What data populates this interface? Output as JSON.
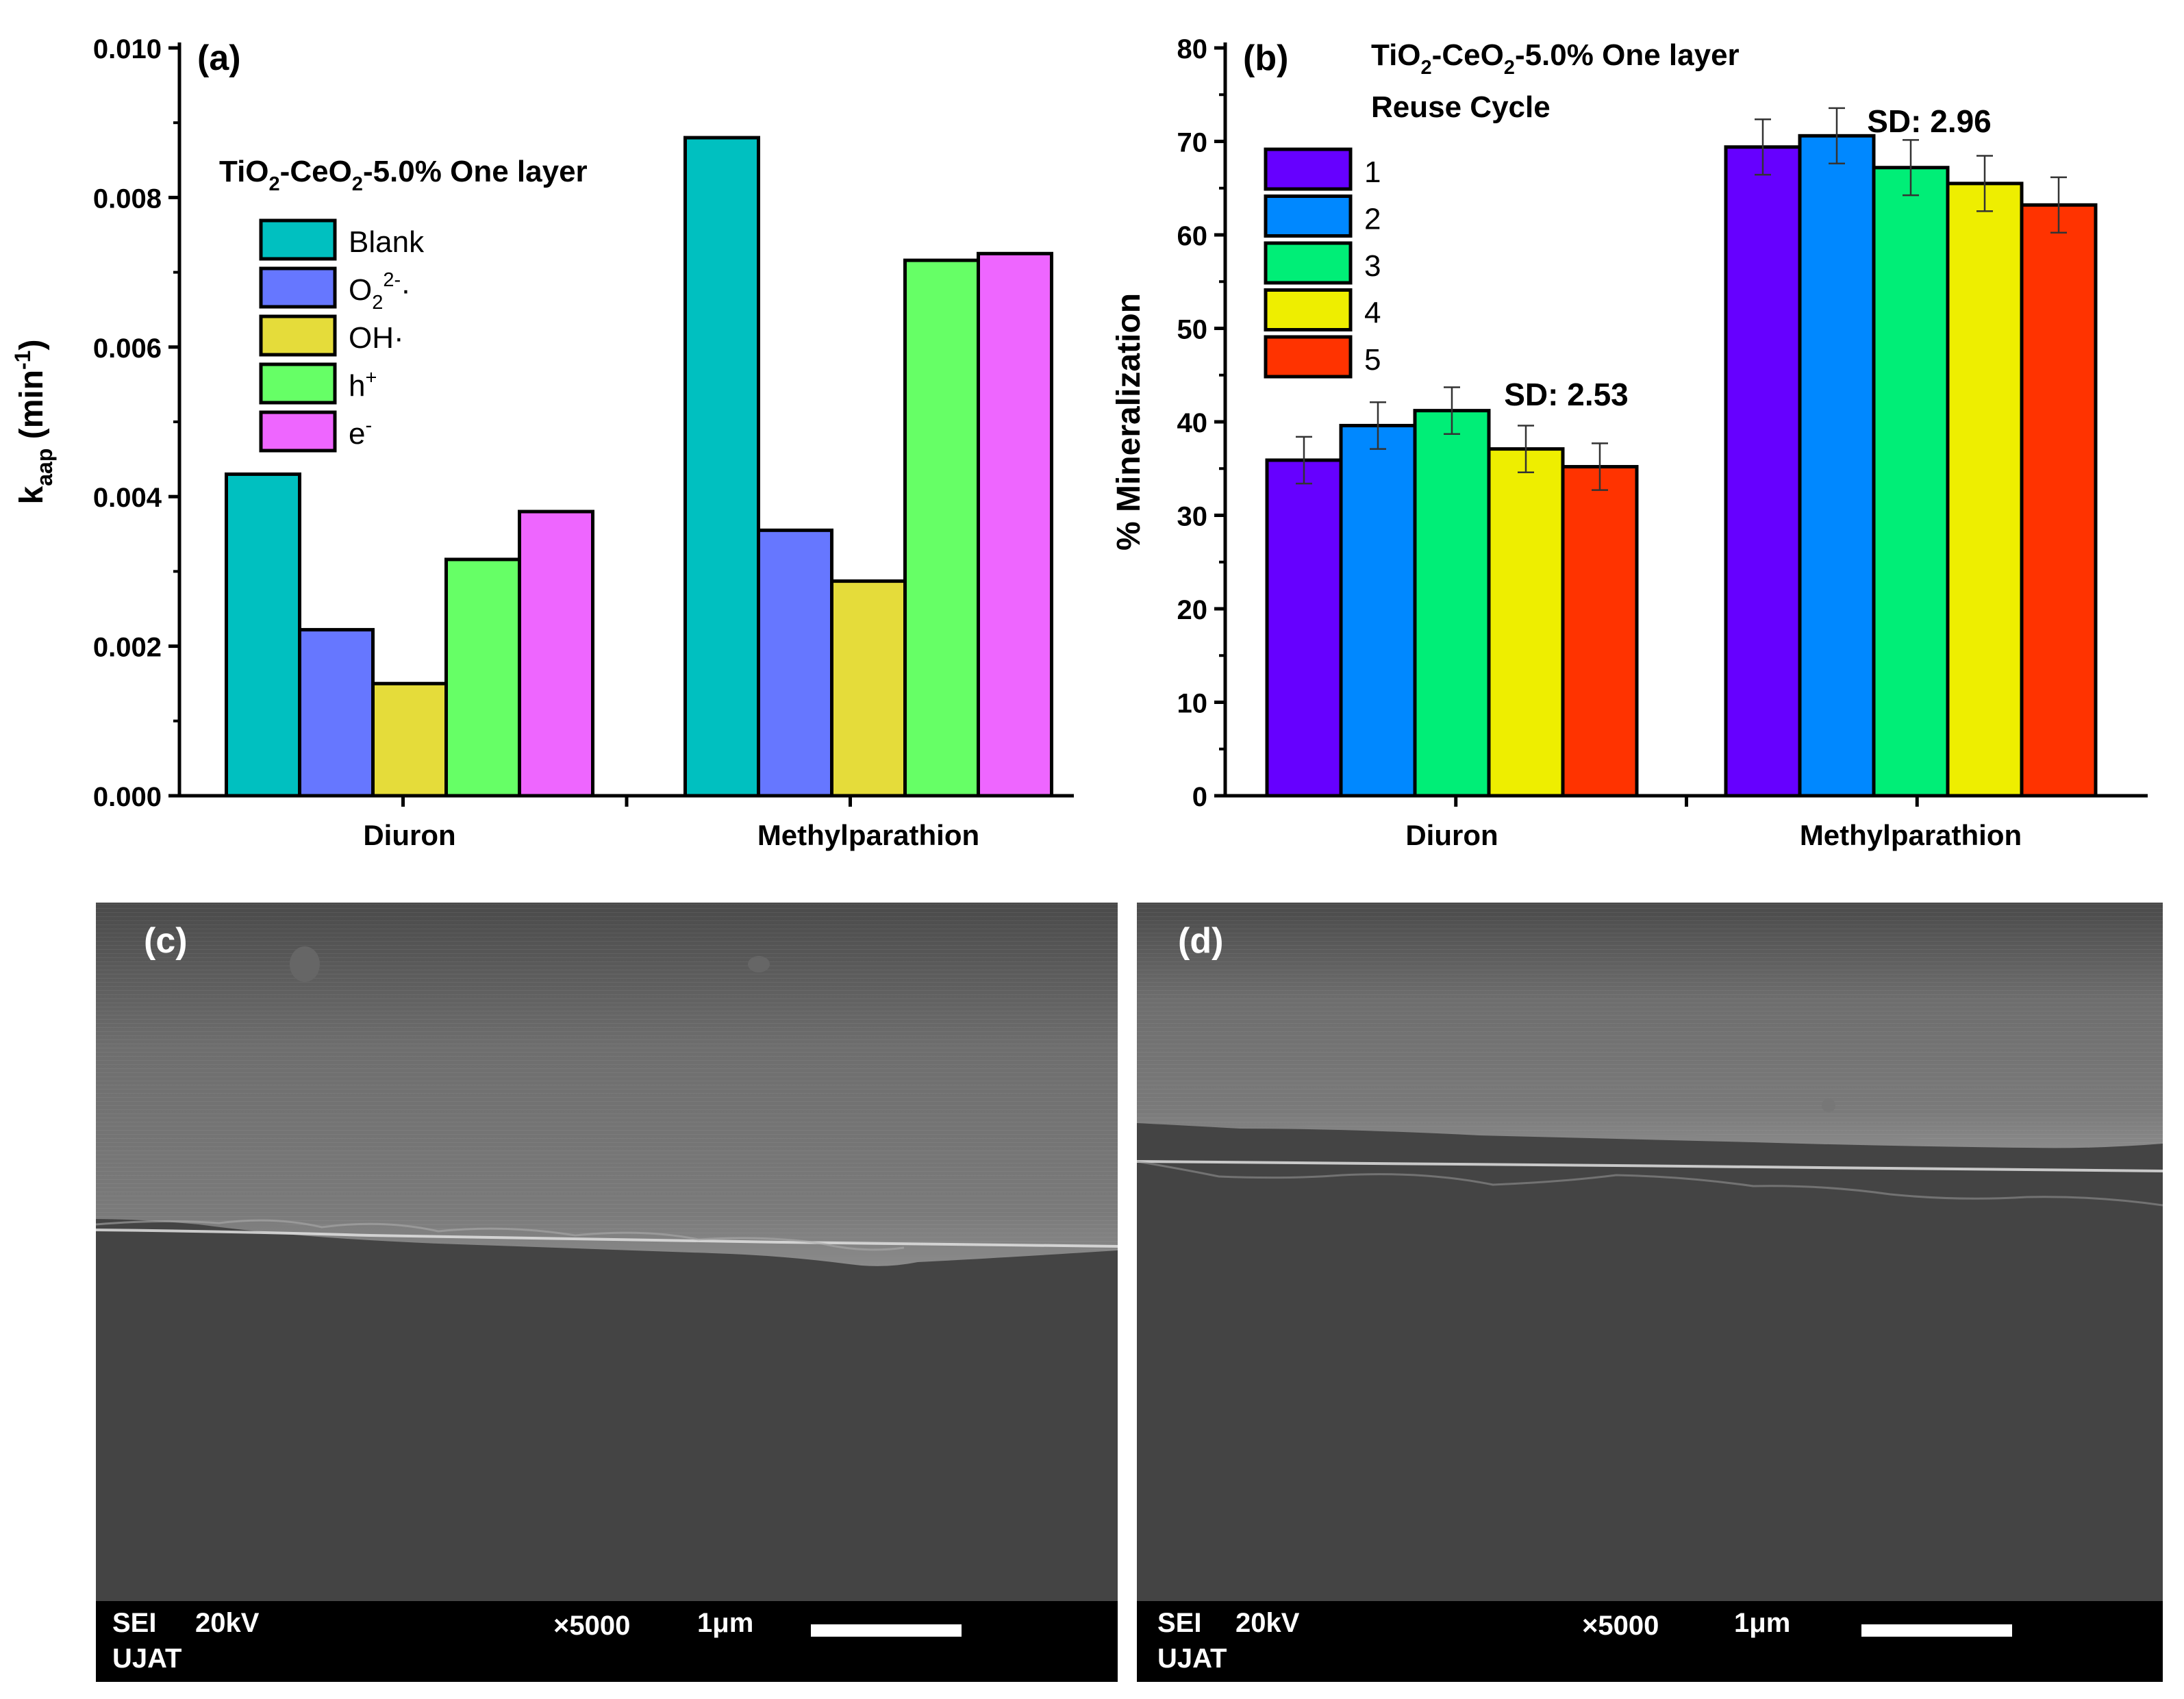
{
  "chart_data": [
    {
      "panel": "(a)",
      "type": "bar",
      "title": "TiO2-CeO2-5.0% One layer",
      "xlabel": "",
      "ylabel": "kaap (min-1)",
      "ylim": [
        0,
        0.01
      ],
      "yticks": [
        "0.000",
        "0.002",
        "0.004",
        "0.006",
        "0.008",
        "0.010"
      ],
      "categories": [
        "Diuron",
        "Methylparathion"
      ],
      "legend_position": "top-left",
      "series": [
        {
          "name": "Blank",
          "color": "#00c0c0",
          "values": [
            0.0043,
            0.0088
          ]
        },
        {
          "name": "O2 2-·",
          "color": "#6677ff",
          "values": [
            0.00222,
            0.00355
          ]
        },
        {
          "name": "OH·",
          "color": "#e5dc3a",
          "values": [
            0.0015,
            0.00287
          ]
        },
        {
          "name": "h+",
          "color": "#66ff66",
          "values": [
            0.00316,
            0.00716
          ]
        },
        {
          "name": "e-",
          "color": "#ee66ff",
          "values": [
            0.0038,
            0.00725
          ]
        }
      ]
    },
    {
      "panel": "(b)",
      "type": "bar",
      "title": "TiO2-CeO2-5.0% One layer",
      "legend_title": "Reuse Cycle",
      "xlabel": "",
      "ylabel": "% Mineralization",
      "ylim": [
        0,
        80
      ],
      "yticks": [
        "0",
        "10",
        "20",
        "30",
        "40",
        "50",
        "60",
        "70",
        "80"
      ],
      "categories": [
        "Diuron",
        "Methylparathion"
      ],
      "legend_position": "top-left",
      "annotations": [
        "SD: 2.53",
        "SD: 2.96"
      ],
      "series": [
        {
          "name": "1",
          "color": "#6600ff",
          "values": [
            35.9,
            69.4
          ],
          "errors": [
            2.5,
            2.96
          ]
        },
        {
          "name": "2",
          "color": "#0088ff",
          "values": [
            39.6,
            70.6
          ],
          "errors": [
            2.5,
            2.96
          ]
        },
        {
          "name": "3",
          "color": "#00ee77",
          "values": [
            41.2,
            67.2
          ],
          "errors": [
            2.5,
            2.96
          ]
        },
        {
          "name": "4",
          "color": "#eeee00",
          "values": [
            37.1,
            65.5
          ],
          "errors": [
            2.5,
            2.96
          ]
        },
        {
          "name": "5",
          "color": "#ff3300",
          "values": [
            35.2,
            63.2
          ],
          "errors": [
            2.5,
            2.96
          ]
        }
      ]
    }
  ],
  "micrographs": [
    {
      "panel": "(c)",
      "mode": "SEI",
      "voltage": "20kV",
      "magnification": "×5000",
      "scale": "1μm",
      "institution": "UJAT"
    },
    {
      "panel": "(d)",
      "mode": "SEI",
      "voltage": "20kV",
      "magnification": "×5000",
      "scale": "1μm",
      "institution": "UJAT"
    }
  ]
}
